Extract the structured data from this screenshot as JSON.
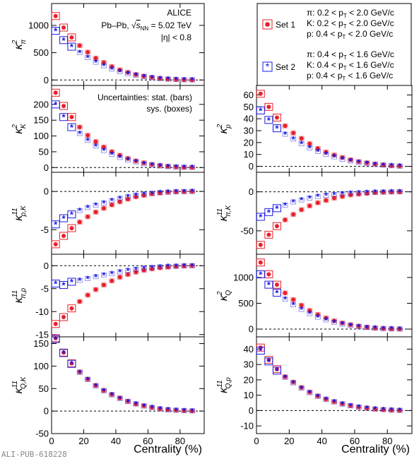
{
  "colors": {
    "set1": "#e8202a",
    "set2": "#1a1ae6",
    "axis": "#000000",
    "zero_line": "#000000"
  },
  "footer": {
    "watermark": "ALI-PUB-618228"
  },
  "info": {
    "experiment": "ALICE",
    "system_prefix": "Pb–Pb, ",
    "sqrt_symbol": "√",
    "s_nn": "s",
    "s_nn_sub": "NN",
    "energy": " = 5.02 TeV",
    "eta_cut": "|η| < 0.8",
    "uncert_line1": "Uncertainties: stat. (bars)",
    "uncert_line2": "sys. (boxes)"
  },
  "legend": {
    "set1_label": "Set 1",
    "set2_label": "Set 2",
    "set1_cuts": [
      "π: 0.2 < p_T < 2.0 GeV/c",
      "K: 0.2 < p_T < 2.0 GeV/c",
      "p: 0.4 < p_T < 2.0 GeV/c"
    ],
    "set2_cuts": [
      "π: 0.4 < p_T < 1.6 GeV/c",
      "K: 0.4 < p_T < 1.6 GeV/c",
      "p: 0.4 < p_T < 1.6 GeV/c"
    ]
  },
  "chart_data": {
    "type": "scatter",
    "xlabel": "Centrality (%)",
    "xlim": [
      0,
      95
    ],
    "x_ticks": [
      0,
      20,
      40,
      60,
      80
    ],
    "x": [
      2.5,
      7.5,
      12.5,
      17.5,
      22.5,
      27.5,
      32.5,
      37.5,
      42.5,
      47.5,
      52.5,
      57.5,
      62.5,
      67.5,
      72.5,
      77.5,
      82.5,
      87.5
    ],
    "series_names": [
      "Set 1",
      "Set 2"
    ],
    "panels": [
      {
        "id": "kappa2-pi",
        "column": "left",
        "row": 0,
        "ylabel": "κ",
        "ylabel_sup": "2",
        "ylabel_sub": "π",
        "ylim": [
          -100,
          1400
        ],
        "y_ticks": [
          0,
          500,
          1000
        ],
        "series": [
          {
            "name": "Set 1",
            "values": [
              1170,
              960,
              780,
              630,
              510,
              400,
              320,
              245,
              185,
              140,
              100,
              70,
              48,
              30,
              18,
              10,
              5,
              2
            ]
          },
          {
            "name": "Set 2",
            "values": [
              900,
              730,
              610,
              500,
              410,
              325,
              260,
              200,
              152,
              115,
              85,
              60,
              40,
              26,
              15,
              8,
              4,
              2
            ]
          }
        ]
      },
      {
        "id": "kappa2-K",
        "column": "left",
        "row": 1,
        "ylabel": "κ",
        "ylabel_sup": "2",
        "ylabel_sub": "K",
        "ylim": [
          -15,
          260
        ],
        "y_ticks": [
          0,
          50,
          100,
          150,
          200
        ],
        "series": [
          {
            "name": "Set 1",
            "values": [
              237,
              195,
              160,
              128,
              102,
              82,
              65,
              50,
              39,
              29,
              21,
              15,
              10,
              7,
              4,
              2,
              1,
              0.5
            ]
          },
          {
            "name": "Set 2",
            "values": [
              200,
              160,
              128,
              108,
              86,
              68,
              54,
              42,
              32,
              24,
              18,
              12,
              8,
              5,
              3,
              2,
              1,
              0.5
            ]
          }
        ]
      },
      {
        "id": "kappa11-pK",
        "column": "left",
        "row": 2,
        "ylabel": "κ",
        "ylabel_sup": "11",
        "ylabel_sub": "p,K",
        "ylim": [
          -8.2,
          2.5
        ],
        "y_ticks": [
          -5,
          0
        ],
        "series": [
          {
            "name": "Set 1",
            "values": [
              -6.9,
              -5.8,
              -4.8,
              -4.0,
              -3.3,
              -2.7,
              -2.2,
              -1.75,
              -1.35,
              -1.0,
              -0.7,
              -0.5,
              -0.3,
              -0.2,
              -0.1,
              -0.05,
              -0.02,
              0
            ]
          },
          {
            "name": "Set 2",
            "values": [
              -4.3,
              -3.5,
              -3.0,
              -2.5,
              -2.1,
              -1.8,
              -1.5,
              -1.2,
              -0.9,
              -0.7,
              -0.5,
              -0.35,
              -0.25,
              -0.15,
              -0.1,
              -0.05,
              -0.02,
              0
            ]
          }
        ]
      },
      {
        "id": "kappa11-pi-p",
        "column": "left",
        "row": 3,
        "ylabel": "κ",
        "ylabel_sup": "11",
        "ylabel_sub": "π,p",
        "ylim": [
          -15.5,
          2.5
        ],
        "y_ticks": [
          -15,
          -10,
          -5,
          0
        ],
        "series": [
          {
            "name": "Set 1",
            "values": [
              -12.7,
              -11.2,
              -9.3,
              -7.8,
              -6.4,
              -5.2,
              -4.2,
              -3.3,
              -2.5,
              -1.9,
              -1.4,
              -1.0,
              -0.7,
              -0.45,
              -0.3,
              -0.15,
              -0.05,
              0
            ]
          },
          {
            "name": "Set 2",
            "values": [
              -3.9,
              -4.2,
              -3.5,
              -3.2,
              -2.8,
              -2.4,
              -2.0,
              -1.7,
              -1.35,
              -1.05,
              -0.8,
              -0.55,
              -0.4,
              -0.25,
              -0.15,
              -0.1,
              -0.05,
              0
            ]
          }
        ]
      },
      {
        "id": "kappa11-QK",
        "column": "left",
        "row": 4,
        "ylabel": "κ",
        "ylabel_sup": "11",
        "ylabel_sub": "Q,K",
        "ylim": [
          -50,
          165
        ],
        "y_ticks": [
          -50,
          0,
          50,
          100,
          150
        ],
        "series": [
          {
            "name": "Set 1",
            "values": [
              162,
              130,
              106,
              87,
              71,
              57,
              46,
              37,
              29,
              22,
              16,
              12,
              8,
              5,
              3,
              2,
              1,
              0.5
            ]
          },
          {
            "name": "Set 2",
            "values": [
              160,
              129,
              105,
              86,
              70,
              56,
              45,
              36,
              28,
              21,
              16,
              11,
              8,
              5,
              3,
              2,
              1,
              0.5
            ]
          }
        ]
      },
      {
        "id": "kappa2-p",
        "column": "right",
        "row": 1,
        "ylabel": "κ",
        "ylabel_sup": "2",
        "ylabel_sub": "p",
        "ylim": [
          -5,
          68
        ],
        "y_ticks": [
          0,
          10,
          20,
          30,
          40,
          50,
          60
        ],
        "series": [
          {
            "name": "Set 1",
            "values": [
              61,
              50,
              41,
              34,
              28,
              23.5,
              19,
              15,
              12,
              9.5,
              7.5,
              5.5,
              4,
              3,
              2,
              1.2,
              0.6,
              0.3
            ]
          },
          {
            "name": "Set 2",
            "values": [
              47,
              39,
              32,
              27,
              23,
              19,
              15.5,
              12.5,
              10,
              8,
              6,
              4.5,
              3.3,
              2.4,
              1.6,
              1,
              0.5,
              0.2
            ]
          }
        ]
      },
      {
        "id": "kappa11-pi-K",
        "column": "right",
        "row": 2,
        "ylabel": "κ",
        "ylabel_sup": "11",
        "ylabel_sub": "π,K",
        "ylim": [
          -80,
          25
        ],
        "y_ticks": [
          -50,
          0
        ],
        "series": [
          {
            "name": "Set 1",
            "values": [
              -68,
              -55,
              -44,
              -36,
              -29,
              -23,
              -18,
              -14,
              -11,
              -8,
              -6,
              -4,
              -3,
              -2,
              -1,
              -0.5,
              -0.2,
              0
            ]
          },
          {
            "name": "Set 2",
            "values": [
              -32,
              -26,
              -21,
              -17,
              -13,
              -10.5,
              -8,
              -6,
              -4.5,
              -3.3,
              -2.4,
              -1.7,
              -1.2,
              -0.8,
              -0.5,
              -0.3,
              -0.1,
              0
            ]
          }
        ]
      },
      {
        "id": "kappa2-Q",
        "column": "right",
        "row": 3,
        "ylabel": "κ",
        "ylabel_sup": "2",
        "ylabel_sub": "Q",
        "ylim": [
          -150,
          1450
        ],
        "y_ticks": [
          0,
          500,
          1000
        ],
        "series": [
          {
            "name": "Set 1",
            "values": [
              1290,
              1060,
              860,
              700,
              570,
              460,
              360,
              280,
              215,
              160,
              118,
              84,
              57,
              37,
              22,
              12,
              6,
              2
            ]
          },
          {
            "name": "Set 2",
            "values": [
              1060,
              860,
              705,
              580,
              470,
              380,
              300,
              232,
              178,
              133,
              97,
              69,
              47,
              31,
              18,
              10,
              5,
              2
            ]
          }
        ]
      },
      {
        "id": "kappa11-Qp",
        "column": "right",
        "row": 4,
        "ylabel": "κ",
        "ylabel_sup": "11",
        "ylabel_sub": "Q,p",
        "ylim": [
          -15,
          48
        ],
        "y_ticks": [
          -10,
          0,
          10,
          20,
          30,
          40
        ],
        "series": [
          {
            "name": "Set 1",
            "values": [
              41,
              33,
              27,
              22,
              18.5,
              15,
              12,
              9.5,
              7.5,
              5.8,
              4.4,
              3.2,
              2.3,
              1.6,
              1,
              0.6,
              0.3,
              0.1
            ]
          },
          {
            "name": "Set 2",
            "values": [
              39,
              32,
              26,
              21.5,
              18,
              14.5,
              11.6,
              9.2,
              7.2,
              5.6,
              4.2,
              3.1,
              2.2,
              1.5,
              1,
              0.6,
              0.3,
              0.1
            ]
          }
        ]
      }
    ]
  }
}
